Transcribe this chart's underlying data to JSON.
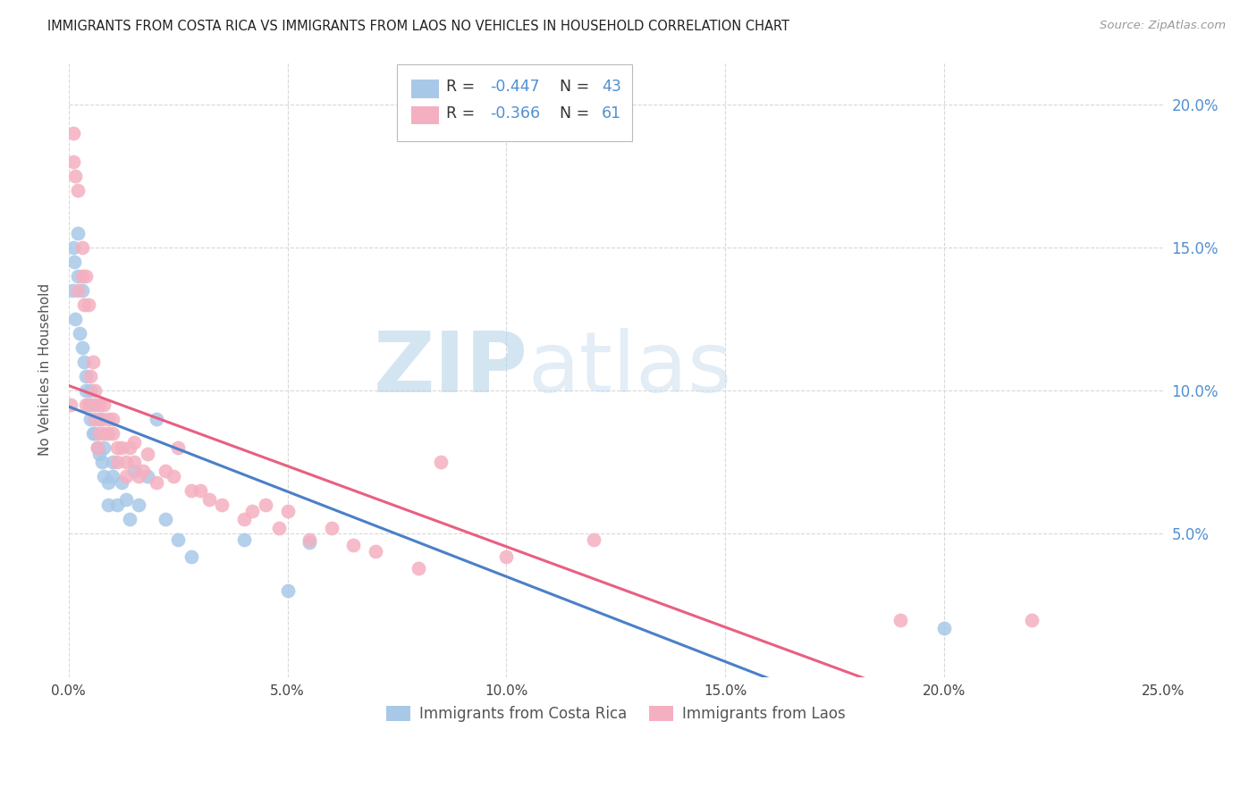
{
  "title": "IMMIGRANTS FROM COSTA RICA VS IMMIGRANTS FROM LAOS NO VEHICLES IN HOUSEHOLD CORRELATION CHART",
  "source": "Source: ZipAtlas.com",
  "ylabel": "No Vehicles in Household",
  "ylabel_right_ticks": [
    "20.0%",
    "15.0%",
    "10.0%",
    "5.0%"
  ],
  "ylabel_right_vals": [
    0.2,
    0.15,
    0.1,
    0.05
  ],
  "xlim": [
    0.0,
    0.25
  ],
  "ylim": [
    0.0,
    0.215
  ],
  "costa_rica_R": "-0.447",
  "costa_rica_N": "43",
  "laos_R": "-0.366",
  "laos_N": "61",
  "costa_rica_color": "#a8c8e8",
  "laos_color": "#f4b0c0",
  "costa_rica_line_color": "#4a80c8",
  "laos_line_color": "#e86080",
  "background_color": "#ffffff",
  "grid_color": "#d8d8d8",
  "watermark_color": "#d0e4f2",
  "costa_rica_x": [
    0.0008,
    0.001,
    0.0012,
    0.0015,
    0.002,
    0.002,
    0.0025,
    0.003,
    0.003,
    0.0035,
    0.004,
    0.004,
    0.0045,
    0.005,
    0.005,
    0.0055,
    0.006,
    0.006,
    0.0065,
    0.007,
    0.007,
    0.0075,
    0.008,
    0.008,
    0.009,
    0.009,
    0.01,
    0.01,
    0.011,
    0.012,
    0.013,
    0.014,
    0.015,
    0.016,
    0.018,
    0.02,
    0.022,
    0.025,
    0.028,
    0.04,
    0.05,
    0.055,
    0.2
  ],
  "costa_rica_y": [
    0.135,
    0.15,
    0.145,
    0.125,
    0.14,
    0.155,
    0.12,
    0.115,
    0.135,
    0.11,
    0.1,
    0.105,
    0.095,
    0.09,
    0.1,
    0.085,
    0.095,
    0.085,
    0.08,
    0.09,
    0.078,
    0.075,
    0.07,
    0.08,
    0.068,
    0.06,
    0.07,
    0.075,
    0.06,
    0.068,
    0.062,
    0.055,
    0.072,
    0.06,
    0.07,
    0.09,
    0.055,
    0.048,
    0.042,
    0.048,
    0.03,
    0.047,
    0.017
  ],
  "laos_x": [
    0.0005,
    0.001,
    0.001,
    0.0015,
    0.002,
    0.002,
    0.003,
    0.003,
    0.0035,
    0.004,
    0.004,
    0.0045,
    0.005,
    0.005,
    0.0055,
    0.006,
    0.006,
    0.0065,
    0.007,
    0.007,
    0.0075,
    0.008,
    0.008,
    0.009,
    0.009,
    0.01,
    0.01,
    0.011,
    0.011,
    0.012,
    0.013,
    0.013,
    0.014,
    0.015,
    0.015,
    0.016,
    0.017,
    0.018,
    0.02,
    0.022,
    0.024,
    0.025,
    0.028,
    0.03,
    0.032,
    0.035,
    0.04,
    0.042,
    0.045,
    0.048,
    0.05,
    0.055,
    0.06,
    0.065,
    0.07,
    0.08,
    0.085,
    0.1,
    0.12,
    0.19,
    0.22
  ],
  "laos_y": [
    0.095,
    0.19,
    0.18,
    0.175,
    0.135,
    0.17,
    0.14,
    0.15,
    0.13,
    0.14,
    0.095,
    0.13,
    0.095,
    0.105,
    0.11,
    0.09,
    0.1,
    0.08,
    0.095,
    0.085,
    0.09,
    0.085,
    0.095,
    0.085,
    0.09,
    0.085,
    0.09,
    0.08,
    0.075,
    0.08,
    0.075,
    0.07,
    0.08,
    0.075,
    0.082,
    0.07,
    0.072,
    0.078,
    0.068,
    0.072,
    0.07,
    0.08,
    0.065,
    0.065,
    0.062,
    0.06,
    0.055,
    0.058,
    0.06,
    0.052,
    0.058,
    0.048,
    0.052,
    0.046,
    0.044,
    0.038,
    0.075,
    0.042,
    0.048,
    0.02,
    0.02
  ]
}
